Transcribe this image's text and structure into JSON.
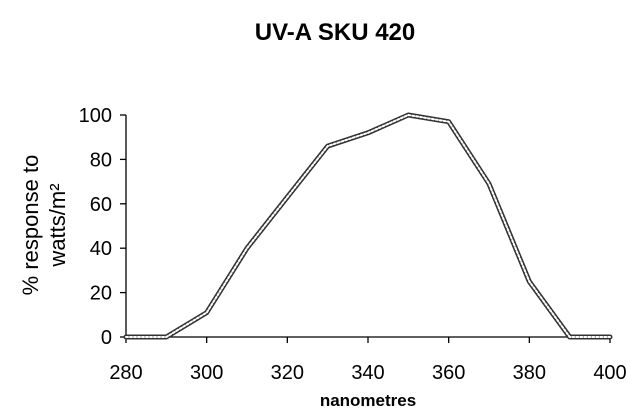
{
  "chart_data": {
    "type": "line",
    "title": "UV-A  SKU 420",
    "xlabel": "nanometres",
    "ylabel_lines": [
      "% response to",
      "watts/m²"
    ],
    "xlim": [
      280,
      400
    ],
    "ylim": [
      0,
      100
    ],
    "x_ticks": [
      280,
      300,
      320,
      340,
      360,
      380,
      400
    ],
    "y_ticks": [
      0,
      20,
      40,
      60,
      80,
      100
    ],
    "grid": false,
    "series": [
      {
        "x": [
          280,
          290,
          300,
          310,
          320,
          330,
          340,
          350,
          360,
          370,
          380,
          390,
          400
        ],
        "values": [
          0,
          0,
          11,
          40,
          63,
          86,
          92,
          100,
          97,
          69,
          25,
          0,
          0
        ]
      }
    ]
  }
}
